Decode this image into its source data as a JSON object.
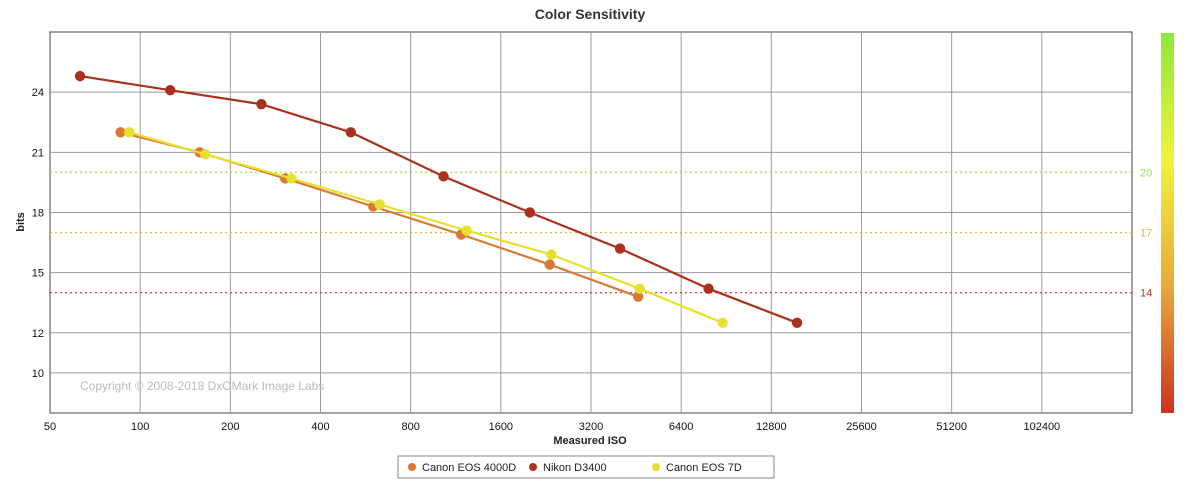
{
  "chart_data": {
    "type": "line",
    "title": "Color Sensitivity",
    "xlabel": "Measured ISO",
    "ylabel": "bits",
    "x_scale": "log2",
    "xlim": [
      50,
      204800
    ],
    "ylim": [
      8,
      27
    ],
    "x_ticks": [
      50,
      100,
      200,
      400,
      800,
      1600,
      3200,
      6400,
      12800,
      25600,
      51200,
      102400
    ],
    "x_tick_labels": [
      "50",
      "100",
      "200",
      "400",
      "800",
      "1600",
      "3200",
      "6400",
      "12800",
      "25600",
      "51200",
      "102400"
    ],
    "y_ticks": [
      10,
      12,
      15,
      18,
      21,
      24
    ],
    "y_tick_labels": [
      "10",
      "12",
      "15",
      "18",
      "21",
      "24"
    ],
    "grid": true,
    "legend_position": "bottom-center",
    "copyright": "Copyright © 2008-2018 DxOMark Image Labs",
    "reference_lines": [
      {
        "y": 20,
        "label": "20",
        "color": "#99e63d"
      },
      {
        "y": 17,
        "label": "17",
        "color": "#e8b23a"
      },
      {
        "y": 14,
        "label": "14",
        "color": "#c8332a"
      }
    ],
    "colorbar": {
      "stops": [
        "#8ee83a",
        "#f2f23a",
        "#e8a93a",
        "#cc3320"
      ]
    },
    "series": [
      {
        "name": "Canon EOS 4000D",
        "color": "#d87a35",
        "x": [
          86,
          158,
          305,
          600,
          1180,
          2330,
          4600
        ],
        "y": [
          22.0,
          21.0,
          19.7,
          18.3,
          16.9,
          15.4,
          13.8
        ]
      },
      {
        "name": "Nikon D3400",
        "color": "#a8321e",
        "x": [
          63,
          126,
          254,
          505,
          1030,
          2000,
          4000,
          7900,
          15600
        ],
        "y": [
          24.8,
          24.1,
          23.4,
          22.0,
          19.8,
          18.0,
          16.2,
          14.2,
          12.5
        ]
      },
      {
        "name": "Canon EOS 7D",
        "color": "#e8e030",
        "x": [
          92,
          165,
          320,
          630,
          1230,
          2360,
          4650,
          8800
        ],
        "y": [
          22.0,
          20.9,
          19.7,
          18.4,
          17.1,
          15.9,
          14.2,
          12.5
        ]
      }
    ]
  }
}
